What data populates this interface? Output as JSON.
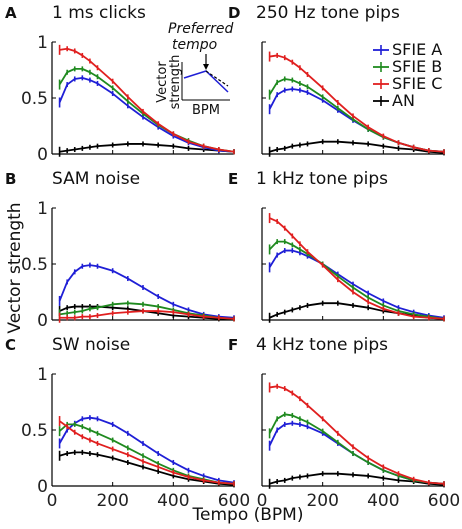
{
  "figure": {
    "ylabel": "Vector strength",
    "xlabel": "Tempo (BPM)"
  },
  "legend": [
    {
      "name": "SFIE A",
      "color": "#1f1fd6"
    },
    {
      "name": "SFIE B",
      "color": "#1f8a1f"
    },
    {
      "name": "SFIE C",
      "color": "#e01f1f"
    },
    {
      "name": "AN",
      "color": "#000000"
    }
  ],
  "inset": {
    "title": "Preferred tempo",
    "title_line1": "Preferred",
    "title_line2": "tempo",
    "ylabel_line1": "Vector",
    "ylabel_line2": "strength",
    "xlabel": "BPM"
  },
  "chart_data": [
    {
      "type": "line",
      "letter": "A",
      "title": "1 ms clicks",
      "xlim": [
        0,
        600
      ],
      "ylim": [
        0,
        1
      ],
      "yticks": [
        "0",
        "0.5",
        "1"
      ],
      "ytick_values": [
        0,
        0.5,
        1
      ],
      "xticks": [
        "0",
        "200",
        "400",
        "600"
      ],
      "xtick_values": [
        0,
        200,
        400,
        600
      ],
      "x": [
        25,
        50,
        75,
        100,
        125,
        150,
        200,
        250,
        300,
        350,
        400,
        450,
        500,
        550,
        600
      ],
      "series": [
        {
          "name": "SFIE A",
          "values": [
            0.46,
            0.62,
            0.67,
            0.68,
            0.66,
            0.63,
            0.54,
            0.43,
            0.33,
            0.24,
            0.16,
            0.1,
            0.06,
            0.03,
            0.02
          ]
        },
        {
          "name": "SFIE B",
          "values": [
            0.62,
            0.73,
            0.76,
            0.76,
            0.73,
            0.69,
            0.59,
            0.47,
            0.36,
            0.26,
            0.18,
            0.12,
            0.07,
            0.04,
            0.02
          ]
        },
        {
          "name": "SFIE C",
          "values": [
            0.93,
            0.94,
            0.92,
            0.88,
            0.83,
            0.77,
            0.65,
            0.51,
            0.38,
            0.27,
            0.18,
            0.11,
            0.07,
            0.04,
            0.02
          ]
        },
        {
          "name": "AN",
          "values": [
            0.02,
            0.03,
            0.04,
            0.05,
            0.06,
            0.07,
            0.08,
            0.09,
            0.09,
            0.08,
            0.07,
            0.05,
            0.04,
            0.03,
            0.02
          ]
        }
      ]
    },
    {
      "type": "line",
      "letter": "B",
      "title": "SAM noise",
      "xlim": [
        0,
        600
      ],
      "ylim": [
        0,
        1
      ],
      "yticks": [
        "0",
        "0.5",
        "1"
      ],
      "ytick_values": [
        0,
        0.5,
        1
      ],
      "xticks": [
        "0",
        "200",
        "400",
        "600"
      ],
      "xtick_values": [
        0,
        200,
        400,
        600
      ],
      "x": [
        25,
        50,
        75,
        100,
        125,
        150,
        200,
        250,
        300,
        350,
        400,
        450,
        500,
        550,
        600
      ],
      "series": [
        {
          "name": "SFIE A",
          "values": [
            0.17,
            0.34,
            0.43,
            0.48,
            0.49,
            0.48,
            0.44,
            0.37,
            0.29,
            0.21,
            0.14,
            0.09,
            0.05,
            0.03,
            0.02
          ]
        },
        {
          "name": "SFIE B",
          "values": [
            0.05,
            0.06,
            0.07,
            0.08,
            0.1,
            0.11,
            0.14,
            0.15,
            0.14,
            0.12,
            0.09,
            0.06,
            0.04,
            0.02,
            0.01
          ]
        },
        {
          "name": "SFIE C",
          "values": [
            0.02,
            0.02,
            0.02,
            0.03,
            0.03,
            0.04,
            0.06,
            0.07,
            0.08,
            0.08,
            0.07,
            0.05,
            0.03,
            0.02,
            0.01
          ]
        },
        {
          "name": "AN",
          "values": [
            0.08,
            0.11,
            0.12,
            0.12,
            0.12,
            0.12,
            0.11,
            0.1,
            0.08,
            0.06,
            0.04,
            0.03,
            0.02,
            0.01,
            0.01
          ]
        }
      ]
    },
    {
      "type": "line",
      "letter": "C",
      "title": "SW noise",
      "xlim": [
        0,
        600
      ],
      "ylim": [
        0,
        1
      ],
      "yticks": [
        "0",
        "0.5",
        "1"
      ],
      "ytick_values": [
        0,
        0.5,
        1
      ],
      "xticks": [
        "0",
        "200",
        "400",
        "600"
      ],
      "xtick_values": [
        0,
        200,
        400,
        600
      ],
      "x": [
        25,
        50,
        75,
        100,
        125,
        150,
        200,
        250,
        300,
        350,
        400,
        450,
        500,
        550,
        600
      ],
      "series": [
        {
          "name": "SFIE A",
          "values": [
            0.38,
            0.5,
            0.56,
            0.6,
            0.61,
            0.6,
            0.55,
            0.47,
            0.38,
            0.29,
            0.21,
            0.14,
            0.09,
            0.05,
            0.03
          ]
        },
        {
          "name": "SFIE B",
          "values": [
            0.49,
            0.55,
            0.55,
            0.53,
            0.5,
            0.47,
            0.41,
            0.34,
            0.27,
            0.2,
            0.14,
            0.09,
            0.06,
            0.03,
            0.02
          ]
        },
        {
          "name": "SFIE C",
          "values": [
            0.58,
            0.53,
            0.48,
            0.44,
            0.41,
            0.38,
            0.33,
            0.28,
            0.22,
            0.17,
            0.12,
            0.08,
            0.05,
            0.03,
            0.02
          ]
        },
        {
          "name": "AN",
          "values": [
            0.27,
            0.29,
            0.3,
            0.3,
            0.29,
            0.28,
            0.25,
            0.21,
            0.17,
            0.13,
            0.09,
            0.06,
            0.04,
            0.02,
            0.01
          ]
        }
      ]
    },
    {
      "type": "line",
      "letter": "D",
      "title": "250 Hz tone pips",
      "xlim": [
        0,
        600
      ],
      "ylim": [
        0,
        1
      ],
      "yticks": [],
      "ytick_values": [
        0,
        0.5,
        1
      ],
      "xticks": [
        "0",
        "200",
        "400",
        "600"
      ],
      "xtick_values": [
        0,
        200,
        400,
        600
      ],
      "x": [
        25,
        50,
        75,
        100,
        125,
        150,
        200,
        250,
        300,
        350,
        400,
        450,
        500,
        550,
        600
      ],
      "series": [
        {
          "name": "SFIE A",
          "values": [
            0.4,
            0.53,
            0.57,
            0.58,
            0.57,
            0.55,
            0.48,
            0.39,
            0.3,
            0.22,
            0.15,
            0.1,
            0.06,
            0.03,
            0.02
          ]
        },
        {
          "name": "SFIE B",
          "values": [
            0.53,
            0.64,
            0.67,
            0.66,
            0.63,
            0.6,
            0.51,
            0.41,
            0.31,
            0.22,
            0.15,
            0.1,
            0.06,
            0.03,
            0.02
          ]
        },
        {
          "name": "SFIE C",
          "values": [
            0.87,
            0.88,
            0.86,
            0.82,
            0.77,
            0.71,
            0.59,
            0.46,
            0.34,
            0.24,
            0.16,
            0.1,
            0.06,
            0.03,
            0.02
          ]
        },
        {
          "name": "AN",
          "values": [
            0.02,
            0.04,
            0.05,
            0.07,
            0.08,
            0.09,
            0.11,
            0.11,
            0.1,
            0.09,
            0.07,
            0.05,
            0.04,
            0.02,
            0.01
          ]
        }
      ]
    },
    {
      "type": "line",
      "letter": "E",
      "title": "1 kHz tone pips",
      "xlim": [
        0,
        600
      ],
      "ylim": [
        0,
        1
      ],
      "yticks": [],
      "ytick_values": [
        0,
        0.5,
        1
      ],
      "xticks": [
        "0",
        "200",
        "400",
        "600"
      ],
      "xtick_values": [
        0,
        200,
        400,
        600
      ],
      "x": [
        25,
        50,
        75,
        100,
        125,
        150,
        200,
        250,
        300,
        350,
        400,
        450,
        500,
        550,
        600
      ],
      "series": [
        {
          "name": "SFIE A",
          "values": [
            0.47,
            0.58,
            0.62,
            0.62,
            0.6,
            0.57,
            0.5,
            0.41,
            0.32,
            0.24,
            0.17,
            0.11,
            0.07,
            0.04,
            0.02
          ]
        },
        {
          "name": "SFIE B",
          "values": [
            0.63,
            0.7,
            0.7,
            0.67,
            0.63,
            0.59,
            0.5,
            0.39,
            0.29,
            0.2,
            0.13,
            0.08,
            0.05,
            0.03,
            0.01
          ]
        },
        {
          "name": "SFIE C",
          "values": [
            0.91,
            0.88,
            0.82,
            0.75,
            0.68,
            0.61,
            0.49,
            0.36,
            0.25,
            0.16,
            0.1,
            0.06,
            0.03,
            0.02,
            0.01
          ]
        },
        {
          "name": "AN",
          "values": [
            0.02,
            0.05,
            0.07,
            0.09,
            0.11,
            0.13,
            0.15,
            0.15,
            0.13,
            0.11,
            0.08,
            0.06,
            0.04,
            0.02,
            0.01
          ]
        }
      ]
    },
    {
      "type": "line",
      "letter": "F",
      "title": "4 kHz tone pips",
      "xlim": [
        0,
        600
      ],
      "ylim": [
        0,
        1
      ],
      "yticks": [],
      "ytick_values": [
        0,
        0.5,
        1
      ],
      "xticks": [
        "0",
        "200",
        "400",
        "600"
      ],
      "xtick_values": [
        0,
        200,
        400,
        600
      ],
      "x": [
        25,
        50,
        75,
        100,
        125,
        150,
        200,
        250,
        300,
        350,
        400,
        450,
        500,
        550,
        600
      ],
      "series": [
        {
          "name": "SFIE A",
          "values": [
            0.36,
            0.5,
            0.55,
            0.56,
            0.55,
            0.53,
            0.47,
            0.38,
            0.29,
            0.21,
            0.14,
            0.09,
            0.05,
            0.03,
            0.02
          ]
        },
        {
          "name": "SFIE B",
          "values": [
            0.47,
            0.6,
            0.64,
            0.63,
            0.6,
            0.57,
            0.49,
            0.39,
            0.29,
            0.21,
            0.14,
            0.09,
            0.05,
            0.03,
            0.02
          ]
        },
        {
          "name": "SFIE C",
          "values": [
            0.88,
            0.89,
            0.87,
            0.83,
            0.78,
            0.72,
            0.6,
            0.47,
            0.35,
            0.25,
            0.17,
            0.11,
            0.06,
            0.03,
            0.02
          ]
        },
        {
          "name": "AN",
          "values": [
            0.02,
            0.04,
            0.05,
            0.07,
            0.08,
            0.09,
            0.11,
            0.11,
            0.1,
            0.09,
            0.07,
            0.05,
            0.04,
            0.02,
            0.01
          ]
        }
      ]
    }
  ]
}
